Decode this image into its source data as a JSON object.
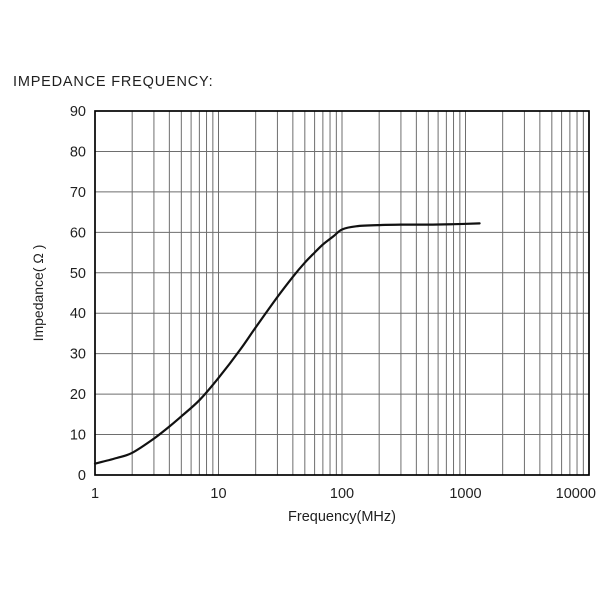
{
  "title": "IMPEDANCE FREQUENCY:",
  "chart_data": {
    "type": "line",
    "title": "IMPEDANCE FREQUENCY:",
    "xlabel": "Frequency(MHz)",
    "ylabel": "Impedance( Ω )",
    "x_scale": "log",
    "y_scale": "linear",
    "xlim": [
      1,
      10000
    ],
    "ylim": [
      0,
      90
    ],
    "x_tick_values": [
      1,
      10,
      100,
      1000,
      10000
    ],
    "x_tick_labels": [
      "1",
      "10",
      "100",
      "1000",
      "10000"
    ],
    "y_tick_values": [
      0,
      10,
      20,
      30,
      40,
      50,
      60,
      70,
      80,
      90
    ],
    "y_tick_labels": [
      "0",
      "10",
      "20",
      "30",
      "40",
      "50",
      "60",
      "70",
      "80",
      "90"
    ],
    "grid": "on (log minor vertical lines, major horizontal lines)",
    "legend": "none",
    "series": [
      {
        "name": "Impedance",
        "x": [
          1,
          1.5,
          2,
          3,
          4,
          5,
          7,
          10,
          15,
          20,
          30,
          40,
          50,
          60,
          70,
          85,
          100,
          130,
          200,
          300,
          500,
          800,
          1300
        ],
        "y": [
          2.8,
          4.2,
          5.5,
          9,
          12,
          14.5,
          18.5,
          24,
          31,
          36.5,
          44,
          49,
          52.5,
          55,
          57,
          59,
          60.7,
          61.5,
          61.8,
          61.9,
          61.9,
          62,
          62.2
        ]
      }
    ],
    "colors": {
      "background": "#ffffff",
      "grid": "#6e6e6e",
      "frame": "#000000",
      "curve": "#111111",
      "text": "#1f1f1f"
    }
  }
}
